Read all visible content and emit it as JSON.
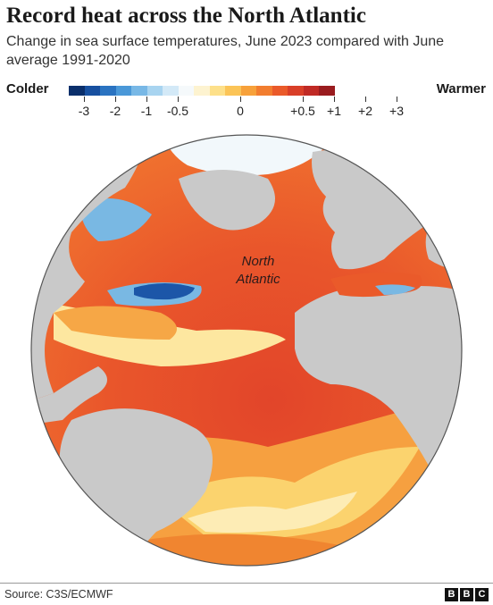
{
  "title": "Record heat across the North Atlantic",
  "subtitle": "Change in sea surface temperatures, June 2023 compared with June average 1991-2020",
  "legend": {
    "left_label": "Colder",
    "right_label": "Warmer",
    "swatches": [
      "#0a2f6b",
      "#1750a0",
      "#2a73c1",
      "#4a98d8",
      "#78b8e6",
      "#a8d4f0",
      "#d3e9f7",
      "#f5f9fb",
      "#fdf3d0",
      "#fde08a",
      "#fbc457",
      "#f7a13a",
      "#f27d2f",
      "#ea5a2a",
      "#d93f28",
      "#c02a25",
      "#9a1c1f"
    ],
    "ticks": [
      "-3",
      "-2",
      "-1",
      "-0.5",
      "0",
      "+0.5",
      "+1",
      "+2",
      "+3"
    ]
  },
  "map": {
    "ocean_label_line1": "North",
    "ocean_label_line2": "Atlantic",
    "colors": {
      "land": "#c9c9c9",
      "warm_deep": "#e2452a",
      "warm_mid": "#f0722f",
      "warm_light": "#f9b24a",
      "pale": "#fde9a6",
      "cold": "#1c56a8",
      "cool": "#79b8e3",
      "ice": "#f2f8fb"
    }
  },
  "footer": {
    "source": "Source: C3S/ECMWF",
    "logo_letters": [
      "B",
      "B",
      "C"
    ]
  }
}
